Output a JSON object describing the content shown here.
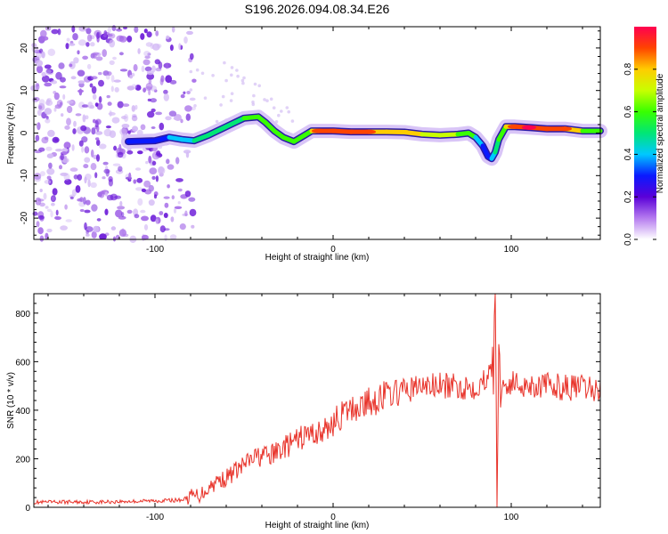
{
  "chart_data": [
    {
      "type": "heatmap",
      "title": "S196.2026.094.08.34.E26",
      "xlabel": "Height of straight line (km)",
      "ylabel": "Frequency (Hz)",
      "xlim": [
        -168,
        150
      ],
      "ylim": [
        -25,
        25
      ],
      "x_ticks": [
        -100,
        0,
        100
      ],
      "x_tick_labels": [
        "-100",
        "0",
        "100"
      ],
      "y_ticks": [
        -20,
        -10,
        0,
        10,
        20
      ],
      "y_tick_labels": [
        "-20",
        "-10",
        "0",
        "10",
        "20"
      ],
      "colorbar": {
        "label": "Normalized spectral amplitude",
        "range": [
          0,
          1
        ],
        "ticks": [
          0.0,
          0.2,
          0.4,
          0.6,
          0.8
        ],
        "tick_labels": [
          "0.0",
          "0.2",
          "0.4",
          "0.6",
          "0.8"
        ],
        "colors": [
          "#ffffff",
          "#b57bef",
          "#5a00d8",
          "#0a1aff",
          "#00c8ff",
          "#00e676",
          "#38ff00",
          "#c8ff00",
          "#ffcc00",
          "#ff4400",
          "#ff0050"
        ]
      },
      "noise_region_x": [
        -168,
        -78
      ],
      "ridge": {
        "x": [
          -115,
          -100,
          -92,
          -85,
          -78,
          -70,
          -60,
          -50,
          -42,
          -38,
          -33,
          -28,
          -22,
          -16,
          -12,
          -8,
          0,
          10,
          20,
          30,
          40,
          50,
          60,
          70,
          76,
          80,
          84,
          87,
          89,
          91,
          93,
          97,
          102,
          110,
          120,
          130,
          140,
          150
        ],
        "y": [
          -2,
          -1.8,
          -1,
          -1.5,
          -1.8,
          -0.5,
          1.5,
          3.5,
          3.8,
          2.5,
          0.5,
          -1,
          -2,
          -0.5,
          0.5,
          0.5,
          0.5,
          0.3,
          0.3,
          0.3,
          0.2,
          -0.3,
          -0.5,
          -0.3,
          0,
          -1,
          -3,
          -5.5,
          -6,
          -4.5,
          -1.5,
          1.5,
          1.5,
          1.3,
          1,
          1,
          0.5,
          0.5
        ],
        "amplitude": [
          0.3,
          0.32,
          0.35,
          0.38,
          0.45,
          0.48,
          0.5,
          0.55,
          0.6,
          0.58,
          0.55,
          0.6,
          0.65,
          0.6,
          0.7,
          0.85,
          0.85,
          0.88,
          0.9,
          0.75,
          0.82,
          0.75,
          0.7,
          0.65,
          0.6,
          0.55,
          0.3,
          0.3,
          0.32,
          0.4,
          0.5,
          0.75,
          0.85,
          0.95,
          0.9,
          0.85,
          0.7,
          0.6
        ]
      }
    },
    {
      "type": "line",
      "title": "",
      "xlabel": "Height of straight line (km)",
      "ylabel": "SNR (10 * v/v)",
      "xlim": [
        -168,
        150
      ],
      "ylim": [
        0,
        880
      ],
      "x_ticks": [
        -100,
        0,
        100
      ],
      "x_tick_labels": [
        "-100",
        "0",
        "100"
      ],
      "y_ticks": [
        0,
        200,
        400,
        600,
        800
      ],
      "y_tick_labels": [
        "0",
        "200",
        "400",
        "600",
        "800"
      ],
      "series": [
        {
          "name": "SNR",
          "color": "#e8332a",
          "x": [
            -168,
            -150,
            -130,
            -110,
            -95,
            -85,
            -80,
            -75,
            -70,
            -65,
            -60,
            -55,
            -50,
            -45,
            -40,
            -35,
            -30,
            -25,
            -20,
            -15,
            -10,
            -5,
            0,
            5,
            10,
            15,
            20,
            25,
            30,
            35,
            40,
            50,
            60,
            70,
            80,
            85,
            88,
            90,
            91,
            92,
            93,
            94,
            96,
            100,
            110,
            120,
            130,
            140,
            150
          ],
          "y": [
            20,
            22,
            22,
            25,
            28,
            30,
            45,
            50,
            80,
            110,
            120,
            150,
            175,
            200,
            215,
            210,
            240,
            255,
            275,
            300,
            305,
            310,
            350,
            380,
            400,
            420,
            430,
            450,
            465,
            470,
            480,
            500,
            500,
            495,
            500,
            520,
            600,
            540,
            850,
            70,
            600,
            520,
            500,
            510,
            505,
            500,
            495,
            490,
            480
          ]
        }
      ]
    }
  ]
}
